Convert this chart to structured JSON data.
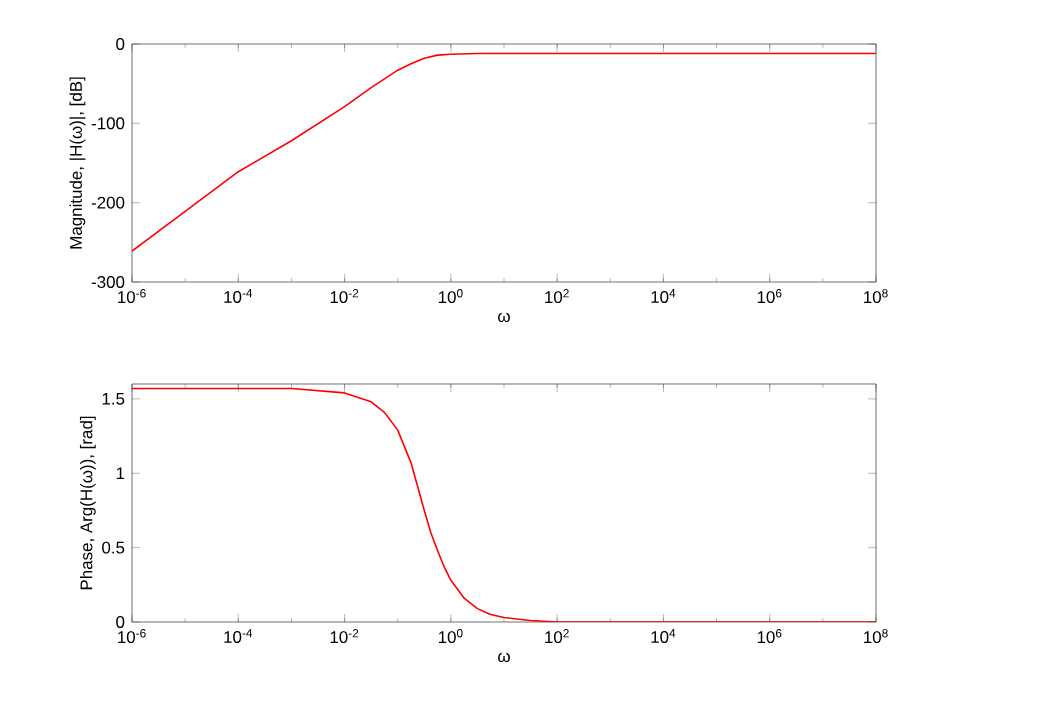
{
  "chart_data": [
    {
      "type": "line",
      "xlabel": "ω",
      "ylabel": "Magnitude, |H(ω)|, [dB]",
      "log": "x",
      "xlim": [
        1e-06,
        100000000.0
      ],
      "ylim": [
        -300,
        0
      ],
      "xticks": [
        {
          "value": 1e-06,
          "label": "10$^{-6}$"
        },
        {
          "value": 0.0001,
          "label": "10$^{-4}$"
        },
        {
          "value": 0.01,
          "label": "10$^{-2}$"
        },
        {
          "value": 1,
          "label": "10$^{0}$"
        },
        {
          "value": 100.0,
          "label": "10$^{2}$"
        },
        {
          "value": 10000.0,
          "label": "10$^{4}$"
        },
        {
          "value": 1000000.0,
          "label": "10$^{6}$"
        },
        {
          "value": 100000000.0,
          "label": "10$^{8}$"
        }
      ],
      "yticks": [
        -300,
        -200,
        -100,
        0
      ],
      "series": [
        {
          "color": "#ff0000",
          "x": [
            1e-06,
            1e-05,
            0.0001,
            0.001,
            0.01,
            0.0316,
            0.1,
            0.178,
            0.316,
            0.562,
            1,
            3.16,
            10,
            100000000.0
          ],
          "values": [
            -261,
            -211,
            -161,
            -122,
            -79,
            -55,
            -33,
            -25,
            -18,
            -14,
            -13,
            -12,
            -12,
            -12
          ]
        }
      ]
    },
    {
      "type": "line",
      "xlabel": "ω",
      "ylabel": "Phase, Arg(H(ω)), [rad]",
      "log": "x",
      "xlim": [
        1e-06,
        100000000.0
      ],
      "ylim": [
        0,
        1.6
      ],
      "xticks": [
        {
          "value": 1e-06,
          "label": "10$^{-6}$"
        },
        {
          "value": 0.0001,
          "label": "10$^{-4}$"
        },
        {
          "value": 0.01,
          "label": "10$^{-2}$"
        },
        {
          "value": 1,
          "label": "10$^{0}$"
        },
        {
          "value": 100.0,
          "label": "10$^{2}$"
        },
        {
          "value": 10000.0,
          "label": "10$^{4}$"
        },
        {
          "value": 1000000.0,
          "label": "10$^{6}$"
        },
        {
          "value": 100000000.0,
          "label": "10$^{8}$"
        }
      ],
      "yticks": [
        0,
        0.5,
        1,
        1.5
      ],
      "series": [
        {
          "color": "#ff0000",
          "x": [
            1e-06,
            0.001,
            0.01,
            0.0316,
            0.056,
            0.1,
            0.178,
            0.316,
            0.42,
            0.562,
            0.75,
            1,
            1.78,
            3.16,
            5.6,
            10,
            31.6,
            100,
            100000000.0
          ],
          "values": [
            1.57,
            1.57,
            1.54,
            1.48,
            1.41,
            1.29,
            1.07,
            0.75,
            0.6,
            0.48,
            0.37,
            0.28,
            0.16,
            0.09,
            0.05,
            0.03,
            0.01,
            0,
            0
          ]
        }
      ]
    }
  ]
}
